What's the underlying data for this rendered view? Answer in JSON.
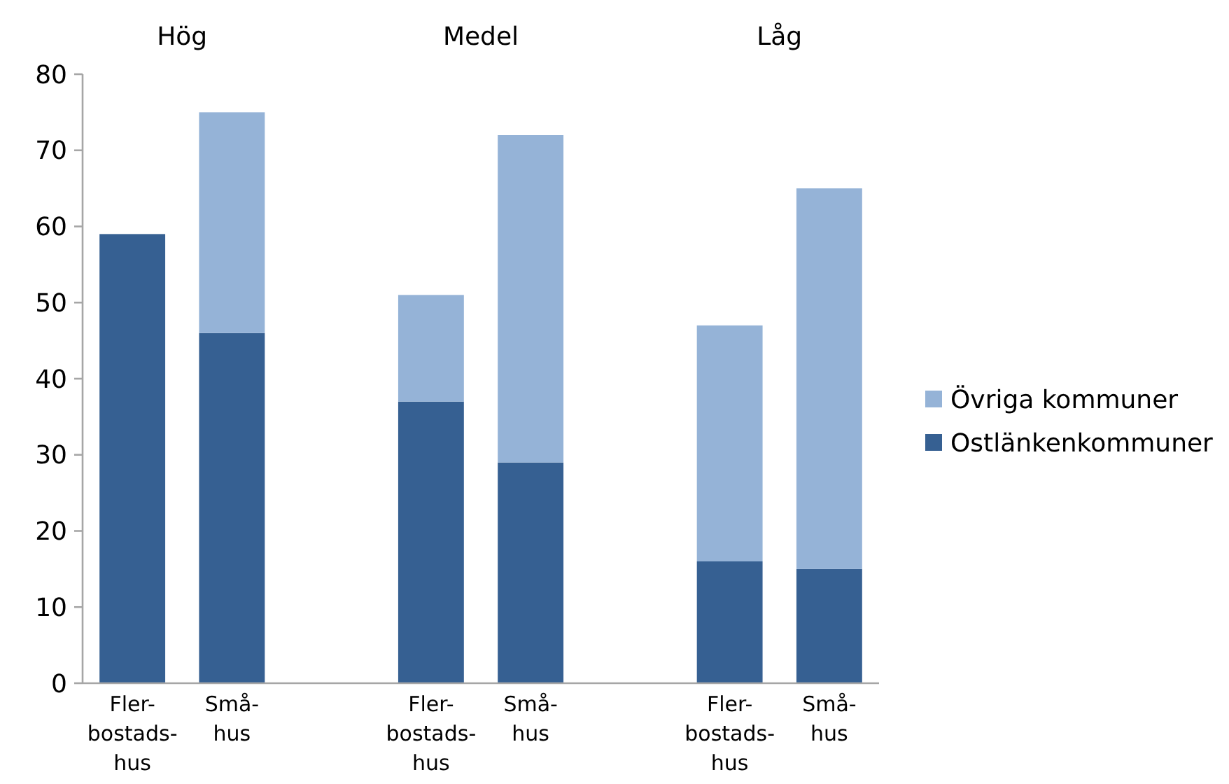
{
  "chart_data": {
    "type": "bar",
    "stacked": true,
    "categories": [
      "Fler-\nbostads-\nhus",
      "Små-\nhus",
      null,
      "Fler-\nbostads-\nhus",
      "Små-\nhus",
      null,
      "Fler-\nbostads-\nhus",
      "Små-\nhus"
    ],
    "series": [
      {
        "name": "Ostlänkenkommuner",
        "color": "#366092",
        "values": [
          59,
          46,
          null,
          37,
          29,
          null,
          16,
          15
        ]
      },
      {
        "name": "Övriga kommuner",
        "color": "#95b3d7",
        "values": [
          null,
          29,
          null,
          14,
          43,
          null,
          31,
          50
        ]
      }
    ],
    "ylim": [
      0,
      80
    ],
    "yticks": [
      0,
      10,
      20,
      30,
      40,
      50,
      60,
      70,
      80
    ],
    "legend": "right",
    "annotations": [
      "Hög",
      "Medel",
      "Låg"
    ]
  }
}
